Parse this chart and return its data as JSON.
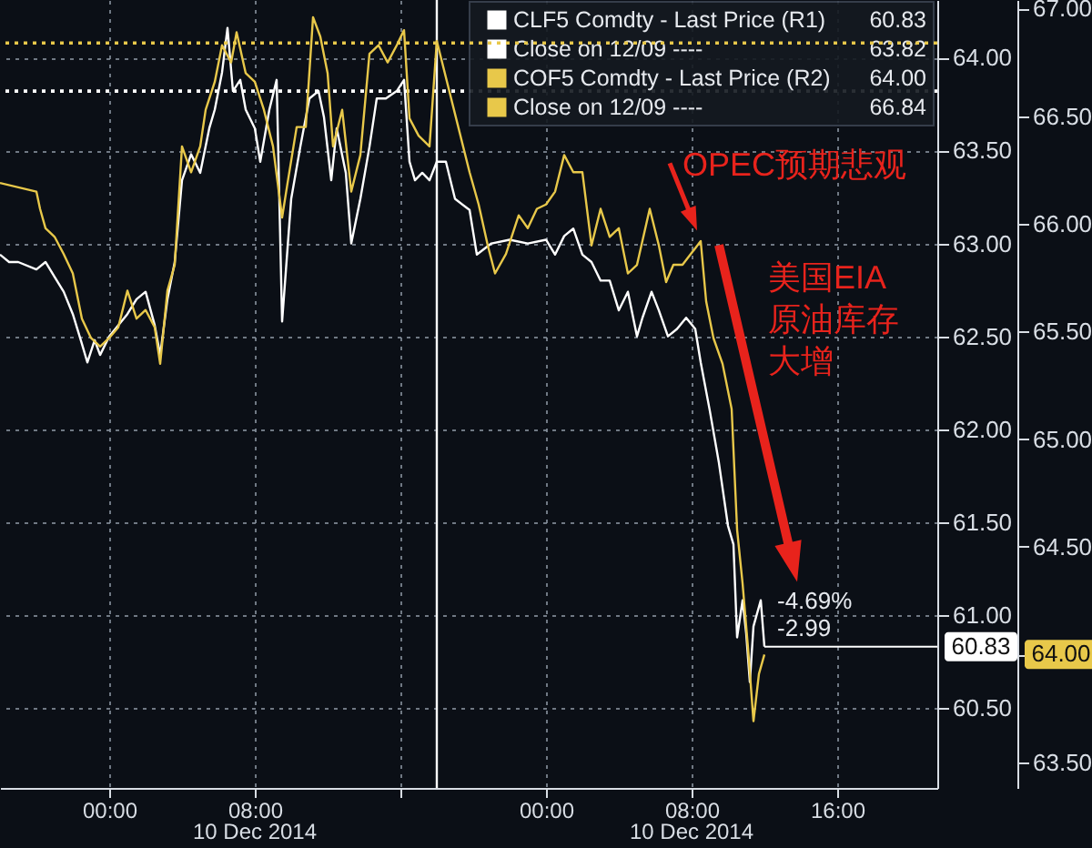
{
  "chart_data": {
    "type": "line",
    "legend": "top right",
    "grid": true,
    "xlim": [
      "2014-12-08T18:00",
      "2014-12-10T21:30"
    ],
    "xticks": [
      {
        "value": "2014-12-09T00:00",
        "label": "00:00"
      },
      {
        "value": "2014-12-09T08:00",
        "label": "08:00"
      },
      {
        "value": "2014-12-09T16:00",
        "label": null
      },
      {
        "value": "2014-12-10T00:00",
        "label": "00:00"
      },
      {
        "value": "2014-12-10T08:00",
        "label": "08:00"
      },
      {
        "value": "2014-12-10T16:00",
        "label": "16:00"
      }
    ],
    "ylim": [
      60.07,
      64.31
    ],
    "yticks": [
      {
        "value": 60.5,
        "label": "60.50"
      },
      {
        "value": 61,
        "label": "61.00"
      },
      {
        "value": 61.5,
        "label": "61.50"
      },
      {
        "value": 62,
        "label": "62.00"
      },
      {
        "value": 62.5,
        "label": "62.50"
      },
      {
        "value": 63,
        "label": "63.00"
      },
      {
        "value": 63.5,
        "label": "63.50"
      },
      {
        "value": 64,
        "label": "64.00"
      }
    ],
    "y2lim": [
      63.38,
      67.04
    ],
    "y2ticks": [
      {
        "value": 63.5,
        "label": "63.50"
      },
      {
        "value": 64,
        "label": "64.00"
      },
      {
        "value": 64.5,
        "label": "64.50"
      },
      {
        "value": 65,
        "label": "65.00"
      },
      {
        "value": 65.5,
        "label": "65.50"
      },
      {
        "value": 66,
        "label": "66.00"
      },
      {
        "value": 66.5,
        "label": "66.50"
      },
      {
        "value": 67,
        "label": "67.00"
      }
    ],
    "series": [
      {
        "name": "CLF5 Comdty - Last Price (R1)",
        "color": "#ffffff",
        "x": [
          "2014-12-08T18:00",
          "2014-12-08T18:30",
          "2014-12-08T19:00",
          "2014-12-08T20:00",
          "2014-12-08T20:30",
          "2014-12-08T21:00",
          "2014-12-08T21:30",
          "2014-12-08T22:00",
          "2014-12-08T22:30",
          "2014-12-08T22:48",
          "2014-12-08T23:12",
          "2014-12-08T23:30",
          "2014-12-09T00:00",
          "2014-12-09T00:30",
          "2014-12-09T01:00",
          "2014-12-09T01:30",
          "2014-12-09T02:00",
          "2014-12-09T02:30",
          "2014-12-09T02:48",
          "2014-12-09T03:12",
          "2014-12-09T03:36",
          "2014-12-09T04:00",
          "2014-12-09T04:30",
          "2014-12-09T05:00",
          "2014-12-09T05:30",
          "2014-12-09T05:48",
          "2014-12-09T06:12",
          "2014-12-09T06:30",
          "2014-12-09T06:48",
          "2014-12-09T07:12",
          "2014-12-09T07:30",
          "2014-12-09T08:00",
          "2014-12-09T08:18",
          "2014-12-09T08:48",
          "2014-12-09T09:12",
          "2014-12-09T09:30",
          "2014-12-09T10:00",
          "2014-12-09T10:30",
          "2014-12-09T11:00",
          "2014-12-09T11:30",
          "2014-12-09T11:48",
          "2014-12-09T12:12",
          "2014-12-09T12:30",
          "2014-12-09T13:00",
          "2014-12-09T13:18",
          "2014-12-09T13:48",
          "2014-12-09T14:18",
          "2014-12-09T14:42",
          "2014-12-09T15:12",
          "2014-12-09T15:48",
          "2014-12-09T16:12",
          "2014-12-09T16:30",
          "2014-12-09T16:48",
          "2014-12-09T17:12",
          "2014-12-09T17:36",
          "2014-12-09T18:00",
          "2014-12-09T18:30",
          "2014-12-09T19:00",
          "2014-12-09T19:48",
          "2014-12-09T20:12",
          "2014-12-09T21:00",
          "2014-12-09T22:00",
          "2014-12-09T23:00",
          "2014-12-10T00:00",
          "2014-12-10T00:30",
          "2014-12-10T01:00",
          "2014-12-10T01:30",
          "2014-12-10T02:00",
          "2014-12-10T02:30",
          "2014-12-10T03:00",
          "2014-12-10T03:30",
          "2014-12-10T04:00",
          "2014-12-10T04:30",
          "2014-12-10T05:00",
          "2014-12-10T05:18",
          "2014-12-10T05:48",
          "2014-12-10T06:12",
          "2014-12-10T06:42",
          "2014-12-10T07:12",
          "2014-12-10T07:42",
          "2014-12-10T08:12",
          "2014-12-10T08:30",
          "2014-12-10T09:00",
          "2014-12-10T09:30",
          "2014-12-10T10:00",
          "2014-12-10T10:18",
          "2014-12-10T10:30",
          "2014-12-10T10:48",
          "2014-12-10T11:00",
          "2014-12-10T11:12",
          "2014-12-10T11:24",
          "2014-12-10T11:48",
          "2014-12-10T12:00"
        ],
        "values": [
          62.94,
          62.9,
          62.9,
          62.86,
          62.9,
          62.82,
          62.74,
          62.62,
          62.46,
          62.36,
          62.48,
          62.4,
          62.5,
          62.56,
          62.62,
          62.7,
          62.74,
          62.56,
          62.4,
          62.7,
          62.9,
          63.34,
          63.48,
          63.38,
          63.62,
          63.72,
          63.92,
          64.16,
          63.82,
          63.88,
          63.72,
          63.62,
          63.44,
          63.72,
          63.88,
          62.58,
          63.24,
          63.52,
          63.78,
          63.82,
          63.68,
          63.34,
          63.62,
          63.38,
          63.0,
          63.24,
          63.52,
          63.78,
          63.78,
          63.82,
          63.88,
          63.44,
          63.34,
          63.38,
          63.34,
          63.44,
          63.44,
          63.24,
          63.18,
          62.94,
          63.0,
          63.02,
          63.0,
          63.02,
          62.94,
          63.04,
          63.08,
          62.94,
          62.9,
          62.8,
          62.8,
          62.64,
          62.74,
          62.5,
          62.6,
          62.74,
          62.64,
          62.5,
          62.54,
          62.6,
          62.54,
          62.36,
          62.1,
          61.82,
          61.48,
          61.38,
          60.88,
          61.08,
          60.9,
          60.64,
          60.94,
          61.08,
          60.83
        ]
      },
      {
        "name": "COF5 Comdty - Last Price (R2)",
        "color": "#e8c84a",
        "axis": "y2",
        "x": [
          "2014-12-08T18:00",
          "2014-12-08T20:00",
          "2014-12-08T20:12",
          "2014-12-08T20:30",
          "2014-12-08T21:00",
          "2014-12-08T21:30",
          "2014-12-08T22:00",
          "2014-12-08T22:30",
          "2014-12-08T23:00",
          "2014-12-08T23:30",
          "2014-12-09T00:00",
          "2014-12-09T00:30",
          "2014-12-09T01:00",
          "2014-12-09T01:30",
          "2014-12-09T02:00",
          "2014-12-09T02:30",
          "2014-12-09T02:48",
          "2014-12-09T03:12",
          "2014-12-09T03:36",
          "2014-12-09T04:00",
          "2014-12-09T04:30",
          "2014-12-09T05:00",
          "2014-12-09T05:18",
          "2014-12-09T05:48",
          "2014-12-09T06:12",
          "2014-12-09T06:42",
          "2014-12-09T07:00",
          "2014-12-09T07:30",
          "2014-12-09T08:00",
          "2014-12-09T08:30",
          "2014-12-09T09:00",
          "2014-12-09T09:30",
          "2014-12-09T09:48",
          "2014-12-09T10:18",
          "2014-12-09T10:48",
          "2014-12-09T11:12",
          "2014-12-09T11:36",
          "2014-12-09T12:00",
          "2014-12-09T12:18",
          "2014-12-09T12:48",
          "2014-12-09T13:18",
          "2014-12-09T13:48",
          "2014-12-09T14:18",
          "2014-12-09T14:48",
          "2014-12-09T15:18",
          "2014-12-09T15:48",
          "2014-12-09T16:12",
          "2014-12-09T16:30",
          "2014-12-09T17:00",
          "2014-12-09T17:36",
          "2014-12-09T18:00",
          "2014-12-09T19:48",
          "2014-12-09T20:18",
          "2014-12-09T20:48",
          "2014-12-09T21:12",
          "2014-12-09T21:48",
          "2014-12-09T22:30",
          "2014-12-09T23:00",
          "2014-12-09T23:30",
          "2014-12-10T00:00",
          "2014-12-10T00:30",
          "2014-12-10T01:00",
          "2014-12-10T01:30",
          "2014-12-10T02:00",
          "2014-12-10T02:30",
          "2014-12-10T03:00",
          "2014-12-10T03:30",
          "2014-12-10T04:00",
          "2014-12-10T04:30",
          "2014-12-10T05:00",
          "2014-12-10T05:42",
          "2014-12-10T06:12",
          "2014-12-10T06:36",
          "2014-12-10T07:00",
          "2014-12-10T07:30",
          "2014-12-10T08:30",
          "2014-12-10T08:48",
          "2014-12-10T09:12",
          "2014-12-10T09:42",
          "2014-12-10T10:12",
          "2014-12-10T10:30",
          "2014-12-10T10:48",
          "2014-12-10T11:06",
          "2014-12-10T11:24",
          "2014-12-10T11:42",
          "2014-12-10T12:00"
        ],
        "values": [
          66.19,
          66.15,
          66.07,
          65.98,
          65.94,
          65.86,
          65.77,
          65.56,
          65.47,
          65.43,
          65.47,
          65.52,
          65.69,
          65.56,
          65.6,
          65.52,
          65.35,
          65.69,
          65.81,
          66.36,
          66.24,
          66.36,
          66.53,
          66.66,
          66.83,
          66.75,
          66.89,
          66.7,
          66.66,
          66.53,
          66.36,
          66.03,
          66.19,
          66.45,
          66.45,
          66.96,
          66.87,
          66.7,
          66.36,
          66.53,
          66.15,
          66.32,
          66.79,
          66.83,
          66.75,
          66.83,
          66.9,
          66.49,
          66.41,
          66.36,
          66.85,
          66.24,
          66.09,
          65.9,
          65.77,
          65.86,
          66.04,
          65.98,
          66.07,
          66.09,
          66.15,
          66.32,
          66.24,
          66.24,
          65.9,
          66.07,
          65.94,
          65.98,
          65.77,
          65.81,
          66.07,
          65.9,
          65.73,
          65.81,
          65.81,
          65.92,
          65.64,
          65.47,
          65.35,
          65.14,
          64.58,
          64.33,
          64.03,
          63.69,
          63.91,
          64.0
        ]
      }
    ],
    "ref_lines": [
      {
        "axis": "y",
        "value": 63.82,
        "label": "Close on 12/09 ----",
        "color": "#ffffff",
        "line_style": "dotted"
      },
      {
        "axis": "y2",
        "value": 66.84,
        "label": "Close on 12/09 ----",
        "color": "#e8c84a",
        "line_style": "dotted"
      },
      {
        "axis": "x",
        "value": "2014-12-09T18:00",
        "color": "#ffffff",
        "line_style": "solid"
      }
    ],
    "annotations": [
      "60.83",
      "63.82",
      "64.00",
      "66.84",
      "-4.69%",
      "-2.99",
      {
        "text": "OPEC预期悲观",
        "x": "2014-12-10T08:30",
        "y": 63.04
      },
      "美国EIA原油库存大增",
      "10 Dec 2014",
      "10 Dec 2014"
    ]
  }
}
